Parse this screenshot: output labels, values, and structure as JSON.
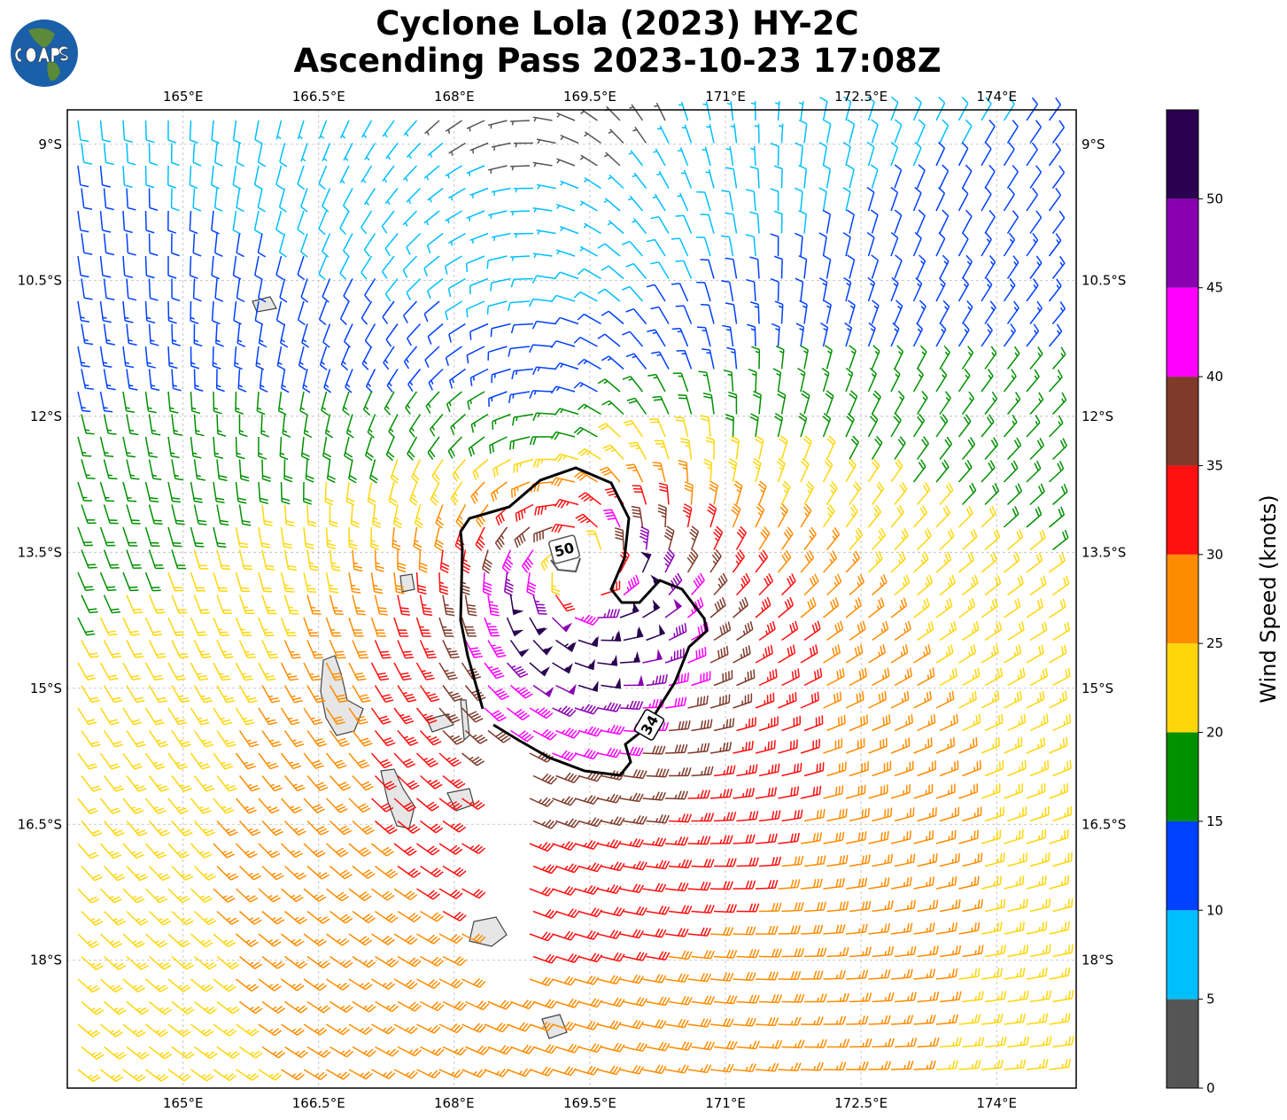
{
  "title": {
    "line1": "Cyclone Lola (2023) HY-2C",
    "line2": "Ascending Pass 2023-10-23 17:08Z"
  },
  "logo": {
    "text": "COAPS"
  },
  "map": {
    "lon_range": [
      163.72,
      174.88
    ],
    "lat_range_south": [
      8.62,
      19.41
    ],
    "lon_ticks": [
      165,
      166.5,
      168,
      169.5,
      171,
      172.5,
      174
    ],
    "lon_tick_labels": [
      "165°E",
      "166.5°E",
      "168°E",
      "169.5°E",
      "171°E",
      "172.5°E",
      "174°E"
    ],
    "lat_ticks": [
      9,
      10.5,
      12,
      13.5,
      15,
      16.5,
      18
    ],
    "lat_tick_labels": [
      "9°S",
      "10.5°S",
      "12°S",
      "13.5°S",
      "15°S",
      "16.5°S",
      "18°S"
    ],
    "contour_labels": {
      "c50": "50",
      "c34": "34"
    }
  },
  "wind_field": {
    "center_lon": 169.4,
    "center_lat_south": 13.8,
    "radius_max_wind_deg": 0.7,
    "max_wind_kt": 50,
    "background_u_kt": -12,
    "background_v_kt": 3
  },
  "colorbar": {
    "label": "Wind Speed (knots)",
    "bounds": [
      0,
      5,
      10,
      15,
      20,
      25,
      30,
      35,
      40,
      45,
      50,
      55
    ],
    "colors": [
      "#555555",
      "#00bfff",
      "#0040ff",
      "#009000",
      "#ffd60a",
      "#ff8c00",
      "#ff1010",
      "#7f3a2a",
      "#ff00ff",
      "#8a00b0",
      "#2a0050"
    ],
    "tick_labels": [
      "0",
      "5",
      "10",
      "15",
      "20",
      "25",
      "30",
      "35",
      "40",
      "45",
      "50"
    ]
  }
}
